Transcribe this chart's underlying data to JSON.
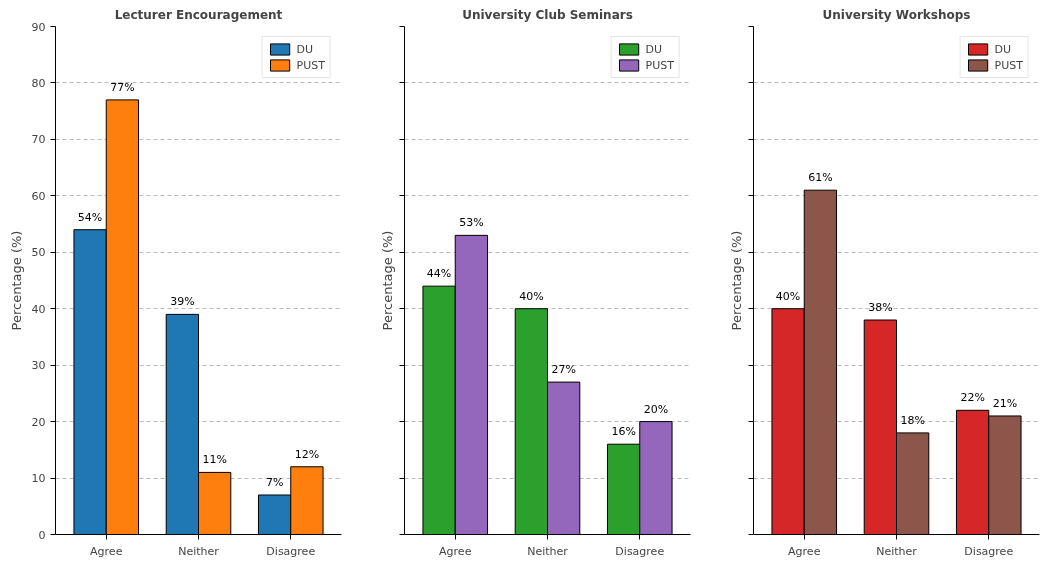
{
  "chart_data": [
    {
      "type": "bar",
      "title": "Lecturer Encouragement",
      "ylabel": "Percentage (%)",
      "categories": [
        "Agree",
        "Neither",
        "Disagree"
      ],
      "series": [
        {
          "name": "DU",
          "color": "#1f77b4",
          "values": [
            54,
            39,
            7
          ],
          "value_labels": [
            "54%",
            "39%",
            "7%"
          ]
        },
        {
          "name": "PUST",
          "color": "#ff7f0e",
          "values": [
            77,
            11,
            12
          ],
          "value_labels": [
            "77%",
            "11%",
            "12%"
          ]
        }
      ],
      "ylim": [
        0,
        90
      ],
      "yticks": [
        0,
        10,
        20,
        30,
        40,
        50,
        60,
        70,
        80,
        90
      ],
      "grid": "y",
      "legend": "top right"
    },
    {
      "type": "bar",
      "title": "University Club Seminars",
      "ylabel": "Percentage (%)",
      "categories": [
        "Agree",
        "Neither",
        "Disagree"
      ],
      "series": [
        {
          "name": "DU",
          "color": "#2ca02c",
          "values": [
            44,
            40,
            16
          ],
          "value_labels": [
            "44%",
            "40%",
            "16%"
          ]
        },
        {
          "name": "PUST",
          "color": "#9467bd",
          "values": [
            53,
            27,
            20
          ],
          "value_labels": [
            "53%",
            "27%",
            "20%"
          ]
        }
      ],
      "ylim": [
        0,
        90
      ],
      "yticks": [
        0,
        10,
        20,
        30,
        40,
        50,
        60,
        70,
        80,
        90
      ],
      "grid": "y",
      "legend": "top right",
      "tick_labels": "x"
    },
    {
      "type": "bar",
      "title": "University Workshops",
      "ylabel": "Percentage (%)",
      "categories": [
        "Agree",
        "Neither",
        "Disagree"
      ],
      "series": [
        {
          "name": "DU",
          "color": "#d62728",
          "values": [
            40,
            38,
            22
          ],
          "value_labels": [
            "40%",
            "38%",
            "22%"
          ]
        },
        {
          "name": "PUST",
          "color": "#8c564b",
          "values": [
            61,
            18,
            21
          ],
          "value_labels": [
            "61%",
            "18%",
            "21%"
          ]
        }
      ],
      "ylim": [
        0,
        90
      ],
      "yticks": [
        0,
        10,
        20,
        30,
        40,
        50,
        60,
        70,
        80,
        90
      ],
      "grid": "y",
      "legend": "top right",
      "tick_labels": "x"
    }
  ]
}
